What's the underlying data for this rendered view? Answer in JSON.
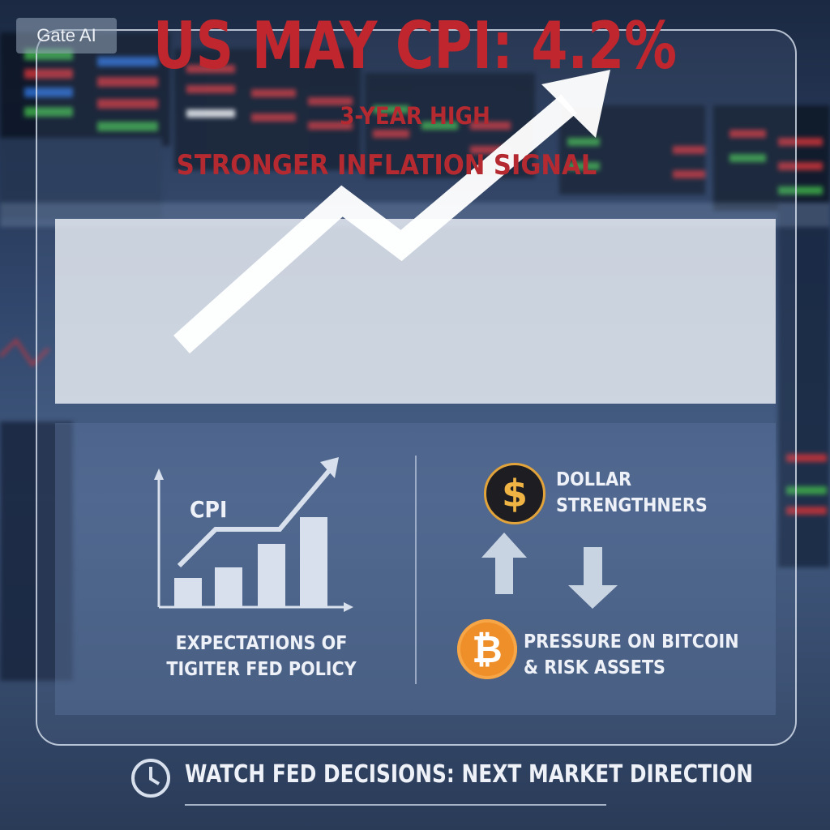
{
  "brand": {
    "label": "Gate AI"
  },
  "headline": {
    "title": "US MAY CPI: 4.2%",
    "subtitle_1": "3-YEAR HIGH",
    "subtitle_2": "STRONGER INFLATION SIGNAL"
  },
  "left_panel": {
    "chart_label": "CPI",
    "caption_line_1": "EXPECTATIONS OF",
    "caption_line_2": "TIGITER FED POLICY",
    "icons": [
      "bar-chart-icon",
      "trend-arrow-icon"
    ]
  },
  "right_panel": {
    "dollar_line_1": "DOLLAR",
    "dollar_line_2": "STRENGTHNERS",
    "bitcoin_line_1": "PRESSURE ON BITCOIN",
    "bitcoin_line_2": "& RISK ASSETS",
    "dollar_symbol": "$",
    "bitcoin_symbol": "₿",
    "icons": [
      "dollar-coin-icon",
      "bitcoin-coin-icon",
      "arrow-up-icon",
      "arrow-down-icon"
    ]
  },
  "footer": {
    "text": "WATCH FED DECISIONS: NEXT MARKET DIRECTION",
    "icon": "clock-icon"
  },
  "colors": {
    "headline_red": "#c0262d",
    "dollar_gold": "#e2a43a",
    "bitcoin_orange": "#ef8f2a",
    "panel_text": "#eef2f8"
  }
}
